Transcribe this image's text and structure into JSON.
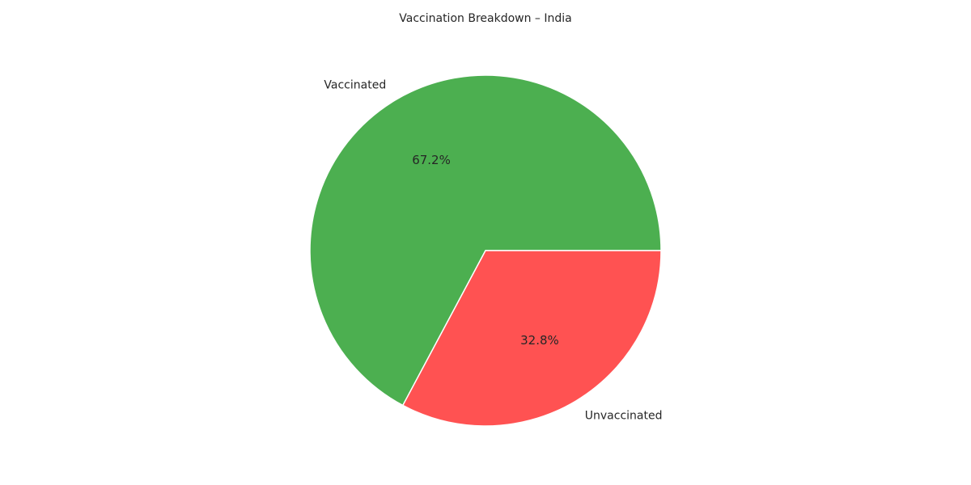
{
  "chart_data": {
    "type": "pie",
    "title": "Vaccination Breakdown – India",
    "slices": [
      {
        "label": "Vaccinated",
        "value": 67.2,
        "pct_label": "67.2%",
        "color": "#4caf50"
      },
      {
        "label": "Unvaccinated",
        "value": 32.8,
        "pct_label": "32.8%",
        "color": "#ff5252"
      }
    ],
    "start_angle_deg": 0,
    "direction": "counterclockwise",
    "legend": "none"
  }
}
